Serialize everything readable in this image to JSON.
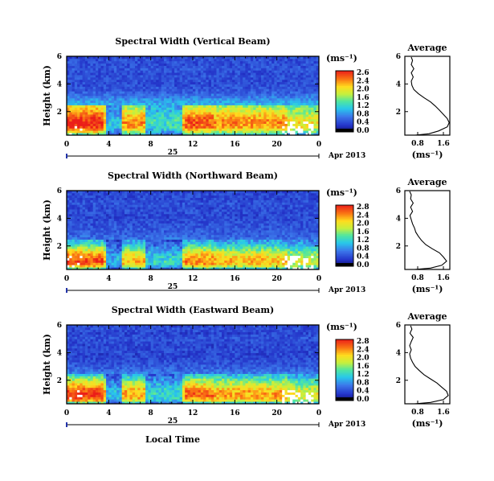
{
  "chart_data": [
    {
      "type": "heatmap",
      "title": "Spectral Width (Vertical Beam)",
      "ylabel": "Height (km)",
      "x_ticks": [
        "0",
        "4",
        "8",
        "12",
        "16",
        "20",
        "0"
      ],
      "y_ticks": [
        "6",
        "4",
        "2"
      ],
      "xlim": [
        0,
        24
      ],
      "ylim": [
        0.3,
        6
      ],
      "date_label": "25",
      "date_suffix": "Apr 2013",
      "colorbar": {
        "label": "(ms⁻¹)",
        "ticks": [
          "2.6",
          "2.4",
          "2.0",
          "1.6",
          "1.2",
          "0.8",
          "0.4",
          "0.0"
        ],
        "range": [
          0,
          2.8
        ]
      },
      "profile": {
        "title": "Average",
        "xlabel": "(ms⁻¹)",
        "x_ticks": [
          "0.8",
          "1.6"
        ],
        "y_ticks": [
          "6",
          "4",
          "2"
        ],
        "xlim": [
          0.4,
          1.8
        ],
        "ylim": [
          0.3,
          6
        ],
        "points": [
          [
            0.72,
            0.3
          ],
          [
            1.15,
            0.4
          ],
          [
            1.45,
            0.6
          ],
          [
            1.72,
            0.9
          ],
          [
            1.78,
            1.2
          ],
          [
            1.72,
            1.5
          ],
          [
            1.6,
            1.8
          ],
          [
            1.48,
            2.1
          ],
          [
            1.35,
            2.4
          ],
          [
            1.2,
            2.7
          ],
          [
            1.0,
            3.0
          ],
          [
            0.82,
            3.3
          ],
          [
            0.68,
            3.6
          ],
          [
            0.62,
            3.9
          ],
          [
            0.6,
            4.2
          ],
          [
            0.66,
            4.5
          ],
          [
            0.6,
            4.8
          ],
          [
            0.68,
            5.1
          ],
          [
            0.6,
            5.4
          ],
          [
            0.64,
            5.7
          ],
          [
            0.6,
            5.95
          ]
        ]
      }
    },
    {
      "type": "heatmap",
      "title": "Spectral Width (Northward Beam)",
      "ylabel": "Height (km)",
      "x_ticks": [
        "0",
        "4",
        "8",
        "12",
        "16",
        "20",
        "0"
      ],
      "y_ticks": [
        "6",
        "4",
        "2"
      ],
      "xlim": [
        0,
        24
      ],
      "ylim": [
        0.3,
        6
      ],
      "date_label": "25",
      "date_suffix": "Apr 2013",
      "colorbar": {
        "label": "(ms⁻¹)",
        "ticks": [
          "2.8",
          "2.4",
          "2.0",
          "1.6",
          "1.2",
          "0.8",
          "0.4",
          "0.0"
        ],
        "range": [
          0,
          2.8
        ]
      },
      "profile": {
        "title": "Average",
        "xlabel": "(ms⁻¹)",
        "x_ticks": [
          "0.8",
          "1.6"
        ],
        "y_ticks": [
          "6",
          "4",
          "2"
        ],
        "xlim": [
          0.4,
          1.8
        ],
        "ylim": [
          0.3,
          6
        ],
        "points": [
          [
            0.7,
            0.3
          ],
          [
            1.2,
            0.4
          ],
          [
            1.55,
            0.6
          ],
          [
            1.7,
            0.9
          ],
          [
            1.6,
            1.2
          ],
          [
            1.48,
            1.5
          ],
          [
            1.25,
            1.8
          ],
          [
            1.05,
            2.1
          ],
          [
            0.92,
            2.4
          ],
          [
            0.82,
            2.7
          ],
          [
            0.74,
            3.0
          ],
          [
            0.7,
            3.3
          ],
          [
            0.64,
            3.6
          ],
          [
            0.6,
            3.9
          ],
          [
            0.56,
            4.2
          ],
          [
            0.64,
            4.5
          ],
          [
            0.58,
            4.8
          ],
          [
            0.66,
            5.1
          ],
          [
            0.58,
            5.4
          ],
          [
            0.6,
            5.7
          ],
          [
            0.55,
            5.95
          ]
        ]
      }
    },
    {
      "type": "heatmap",
      "title": "Spectral Width (Eastward Beam)",
      "ylabel": "Height (km)",
      "x_ticks": [
        "0",
        "4",
        "8",
        "12",
        "16",
        "20",
        "0"
      ],
      "y_ticks": [
        "6",
        "4",
        "2"
      ],
      "xlim": [
        0,
        24
      ],
      "ylim": [
        0.3,
        6
      ],
      "date_label": "25",
      "date_suffix": "Apr 2013",
      "xlabel": "Local Time",
      "colorbar": {
        "label": "(ms⁻¹)",
        "ticks": [
          "2.8",
          "2.4",
          "2.0",
          "1.6",
          "1.2",
          "0.8",
          "0.4",
          "0.0"
        ],
        "range": [
          0,
          2.8
        ]
      },
      "profile": {
        "title": "Average",
        "xlabel": "(ms⁻¹)",
        "x_ticks": [
          "0.8",
          "1.6"
        ],
        "y_ticks": [
          "6",
          "4",
          "2"
        ],
        "xlim": [
          0.4,
          1.8
        ],
        "ylim": [
          0.3,
          6
        ],
        "points": [
          [
            0.7,
            0.3
          ],
          [
            1.2,
            0.4
          ],
          [
            1.6,
            0.6
          ],
          [
            1.75,
            0.9
          ],
          [
            1.7,
            1.2
          ],
          [
            1.55,
            1.5
          ],
          [
            1.4,
            1.8
          ],
          [
            1.2,
            2.1
          ],
          [
            1.0,
            2.4
          ],
          [
            0.85,
            2.7
          ],
          [
            0.72,
            3.0
          ],
          [
            0.64,
            3.3
          ],
          [
            0.58,
            3.6
          ],
          [
            0.55,
            3.9
          ],
          [
            0.6,
            4.2
          ],
          [
            0.55,
            4.5
          ],
          [
            0.6,
            4.8
          ],
          [
            0.66,
            5.1
          ],
          [
            0.56,
            5.4
          ],
          [
            0.62,
            5.7
          ],
          [
            0.58,
            5.95
          ]
        ]
      }
    }
  ]
}
